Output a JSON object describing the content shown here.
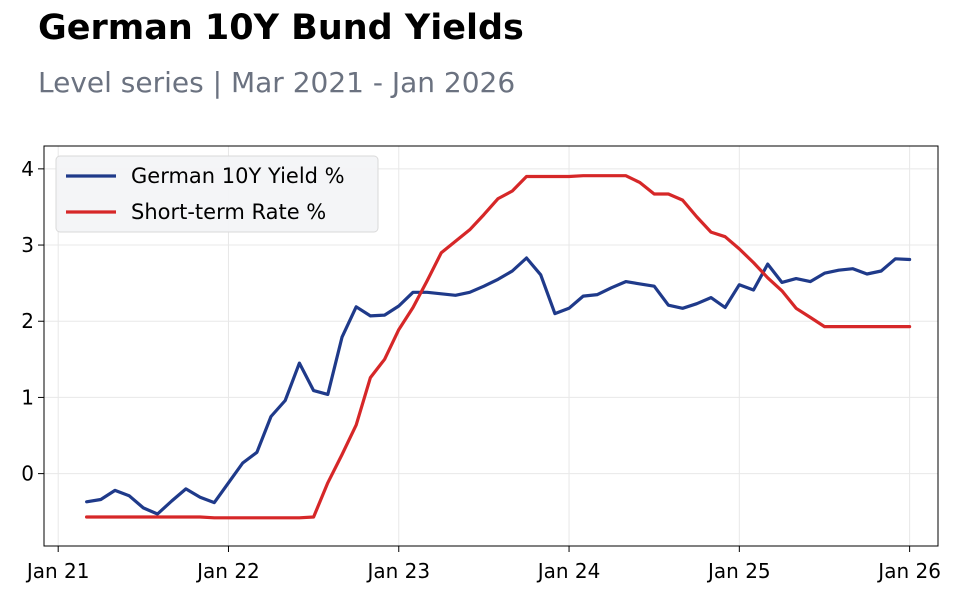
{
  "header": {
    "title": "German 10Y Bund Yields",
    "subtitle": "Level series | Mar 2021 - Jan 2026"
  },
  "chart_data": {
    "type": "line",
    "title": "German 10Y Bund Yields",
    "subtitle": "Level series | Mar 2021 - Jan 2026",
    "xlabel": "",
    "ylabel": "",
    "x_ticks": [
      "Jan 21",
      "Jan 22",
      "Jan 23",
      "Jan 24",
      "Jan 25",
      "Jan 26"
    ],
    "y_ticks": [
      0,
      1,
      2,
      3,
      4
    ],
    "xlim": [
      "2020-12",
      "2026-03"
    ],
    "ylim": [
      -0.95,
      4.3
    ],
    "grid": true,
    "legend_position": "top-left",
    "x": [
      "2021-03",
      "2021-04",
      "2021-05",
      "2021-06",
      "2021-07",
      "2021-08",
      "2021-09",
      "2021-10",
      "2021-11",
      "2021-12",
      "2022-01",
      "2022-02",
      "2022-03",
      "2022-04",
      "2022-05",
      "2022-06",
      "2022-07",
      "2022-08",
      "2022-09",
      "2022-10",
      "2022-11",
      "2022-12",
      "2023-01",
      "2023-02",
      "2023-03",
      "2023-04",
      "2023-05",
      "2023-06",
      "2023-07",
      "2023-08",
      "2023-09",
      "2023-10",
      "2023-11",
      "2023-12",
      "2024-01",
      "2024-02",
      "2024-03",
      "2024-04",
      "2024-05",
      "2024-06",
      "2024-07",
      "2024-08",
      "2024-09",
      "2024-10",
      "2024-11",
      "2024-12",
      "2025-01",
      "2025-02",
      "2025-03",
      "2025-04",
      "2025-05",
      "2025-06",
      "2025-07",
      "2025-08",
      "2025-09",
      "2025-10",
      "2025-11",
      "2025-12",
      "2026-01"
    ],
    "series": [
      {
        "name": "German 10Y Yield %",
        "color": "#1f3a8a",
        "values": [
          -0.37,
          -0.34,
          -0.22,
          -0.29,
          -0.45,
          -0.53,
          -0.36,
          -0.2,
          -0.31,
          -0.38,
          -0.12,
          0.14,
          0.28,
          0.75,
          0.96,
          1.45,
          1.09,
          1.04,
          1.79,
          2.19,
          2.07,
          2.08,
          2.2,
          2.38,
          2.38,
          2.36,
          2.34,
          2.38,
          2.46,
          2.55,
          2.66,
          2.83,
          2.61,
          2.1,
          2.17,
          2.33,
          2.35,
          2.44,
          2.52,
          2.49,
          2.46,
          2.21,
          2.17,
          2.23,
          2.31,
          2.18,
          2.48,
          2.41,
          2.75,
          2.51,
          2.56,
          2.52,
          2.63,
          2.67,
          2.69,
          2.62,
          2.66,
          2.82,
          2.81
        ]
      },
      {
        "name": "Short-term Rate %",
        "color": "#d62728",
        "values": [
          -0.57,
          -0.57,
          -0.57,
          -0.57,
          -0.57,
          -0.57,
          -0.57,
          -0.57,
          -0.57,
          -0.58,
          -0.58,
          -0.58,
          -0.58,
          -0.58,
          -0.58,
          -0.58,
          -0.57,
          -0.12,
          0.25,
          0.64,
          1.26,
          1.5,
          1.89,
          2.18,
          2.53,
          2.9,
          3.05,
          3.2,
          3.4,
          3.61,
          3.71,
          3.9,
          3.9,
          3.9,
          3.9,
          3.91,
          3.91,
          3.91,
          3.91,
          3.82,
          3.67,
          3.67,
          3.59,
          3.37,
          3.17,
          3.11,
          2.95,
          2.77,
          2.57,
          2.4,
          2.17,
          2.05,
          1.93,
          1.93,
          1.93,
          1.93,
          1.93,
          1.93,
          1.93
        ]
      }
    ]
  }
}
